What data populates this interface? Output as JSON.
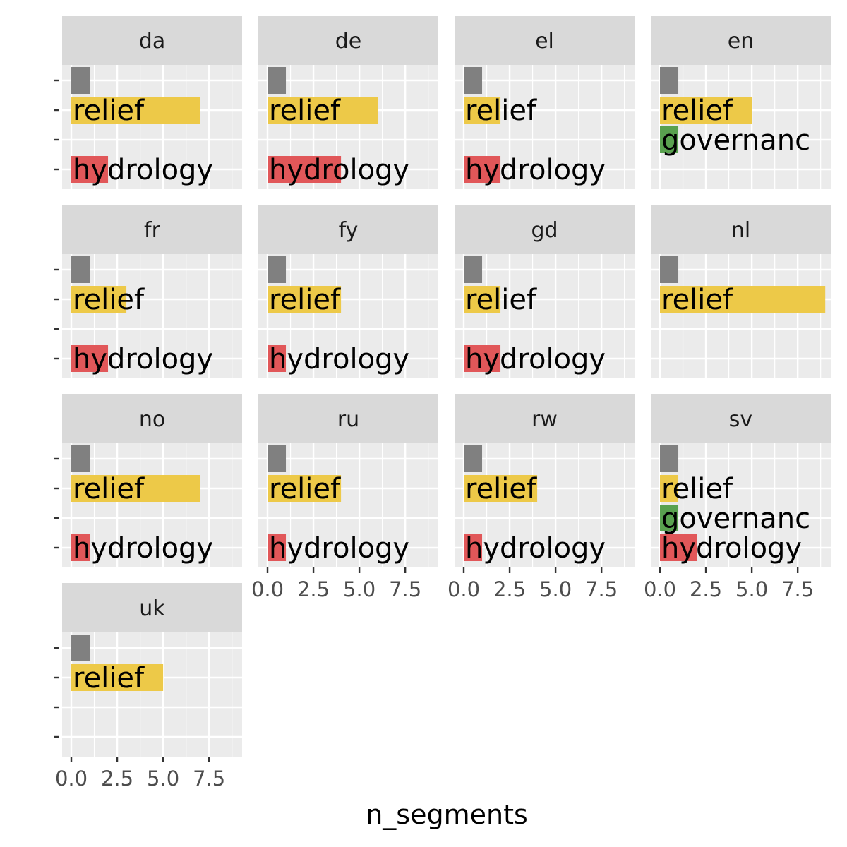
{
  "chart_data": {
    "type": "bar",
    "facet_layout": "wrap",
    "xlabel": "n_segments",
    "ylabel": "",
    "xlim": [
      -0.5,
      9.3
    ],
    "x_ticks": [
      0,
      2.5,
      5,
      7.5
    ],
    "x_tick_labels": [
      "0.0",
      "2.5",
      "5.0",
      "7.5"
    ],
    "grid": true,
    "categories": [
      "",
      "relief",
      "governance",
      "hydrology"
    ],
    "category_label_shown": [
      "",
      "relief",
      "governanc",
      "hydrology"
    ],
    "colors": {
      "": "#808080",
      "relief": "#EDC948",
      "governance": "#59A14F",
      "hydrology": "#E15759",
      "panel_bg": "#EBEBEB",
      "strip_bg": "#D9D9D9",
      "grid": "#FFFFFF",
      "axis_text": "#4D4D4D",
      "strip_text": "#1A1A1A",
      "tick": "#333333"
    },
    "facets": [
      {
        "name": "da",
        "values": {
          "": 1,
          "relief": 7,
          "hydrology": 2
        }
      },
      {
        "name": "de",
        "values": {
          "": 1,
          "relief": 6,
          "hydrology": 4
        }
      },
      {
        "name": "el",
        "values": {
          "": 1,
          "relief": 2,
          "hydrology": 2
        }
      },
      {
        "name": "en",
        "values": {
          "": 1,
          "relief": 5,
          "governance": 1
        }
      },
      {
        "name": "fr",
        "values": {
          "": 1,
          "relief": 3,
          "hydrology": 2
        }
      },
      {
        "name": "fy",
        "values": {
          "": 1,
          "relief": 4,
          "hydrology": 1
        }
      },
      {
        "name": "gd",
        "values": {
          "": 1,
          "relief": 2,
          "hydrology": 2
        }
      },
      {
        "name": "nl",
        "values": {
          "": 1,
          "relief": 9
        }
      },
      {
        "name": "no",
        "values": {
          "": 1,
          "relief": 7,
          "hydrology": 1
        }
      },
      {
        "name": "ru",
        "values": {
          "": 1,
          "relief": 4,
          "hydrology": 1
        }
      },
      {
        "name": "rw",
        "values": {
          "": 1,
          "relief": 4,
          "hydrology": 1
        }
      },
      {
        "name": "sv",
        "values": {
          "": 1,
          "relief": 1,
          "governance": 1,
          "hydrology": 2
        }
      },
      {
        "name": "uk",
        "values": {
          "": 1,
          "relief": 5
        }
      }
    ]
  }
}
